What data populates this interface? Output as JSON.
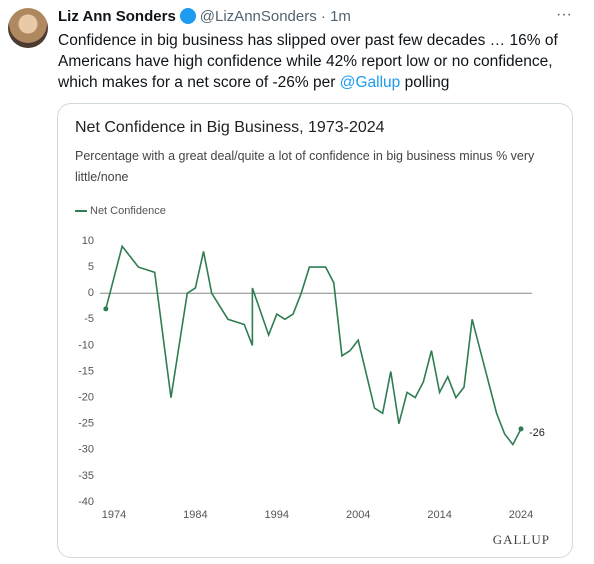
{
  "tweet": {
    "author_name": "Liz Ann Sonders",
    "handle": "@LizAnnSonders",
    "time": "1m",
    "text_before": "Confidence in big business has slipped over past few decades … 16% of Americans have high confidence while 42% report low or no confidence, which makes for a net score of -26% per ",
    "mention": "@Gallup",
    "text_after": " polling"
  },
  "chart_data": {
    "type": "line",
    "title": "Net Confidence in Big Business, 1973-2024",
    "subtitle": "Percentage with a great deal/quite a lot of confidence in big business minus % very little/none",
    "source": "GALLUP",
    "x": [
      1973,
      1975,
      1977,
      1979,
      1981,
      1983,
      1984,
      1985,
      1986,
      1988,
      1990,
      1991,
      1991,
      1993,
      1994,
      1995,
      1996,
      1997,
      1998,
      2000,
      2001,
      2002,
      2003,
      2004,
      2006,
      2007,
      2008,
      2009,
      2010,
      2011,
      2012,
      2013,
      2014,
      2015,
      2016,
      2017,
      2018,
      2021,
      2022,
      2023,
      2024
    ],
    "series": [
      {
        "name": "Net Confidence",
        "color": "#2f7d50",
        "values": [
          -3,
          9,
          5,
          4,
          -20,
          0,
          1,
          8,
          0,
          -5,
          -6,
          -10,
          1,
          -8,
          -4,
          -5,
          -4,
          0,
          5,
          5,
          2,
          -12,
          -11,
          -9,
          -22,
          -23,
          -15,
          -25,
          -19,
          -20,
          -17,
          -11,
          -19,
          -16,
          -20,
          -18,
          -5,
          -23,
          -27,
          -29,
          -26
        ]
      }
    ],
    "xlim": [
      1972,
      2025
    ],
    "xticks": [
      1974,
      1984,
      1994,
      2004,
      2014,
      2024
    ],
    "ylim": [
      -40,
      10
    ],
    "yticks": [
      10,
      5,
      0,
      -5,
      -10,
      -15,
      -20,
      -25,
      -30,
      -35,
      -40
    ],
    "legend": "top-left"
  }
}
